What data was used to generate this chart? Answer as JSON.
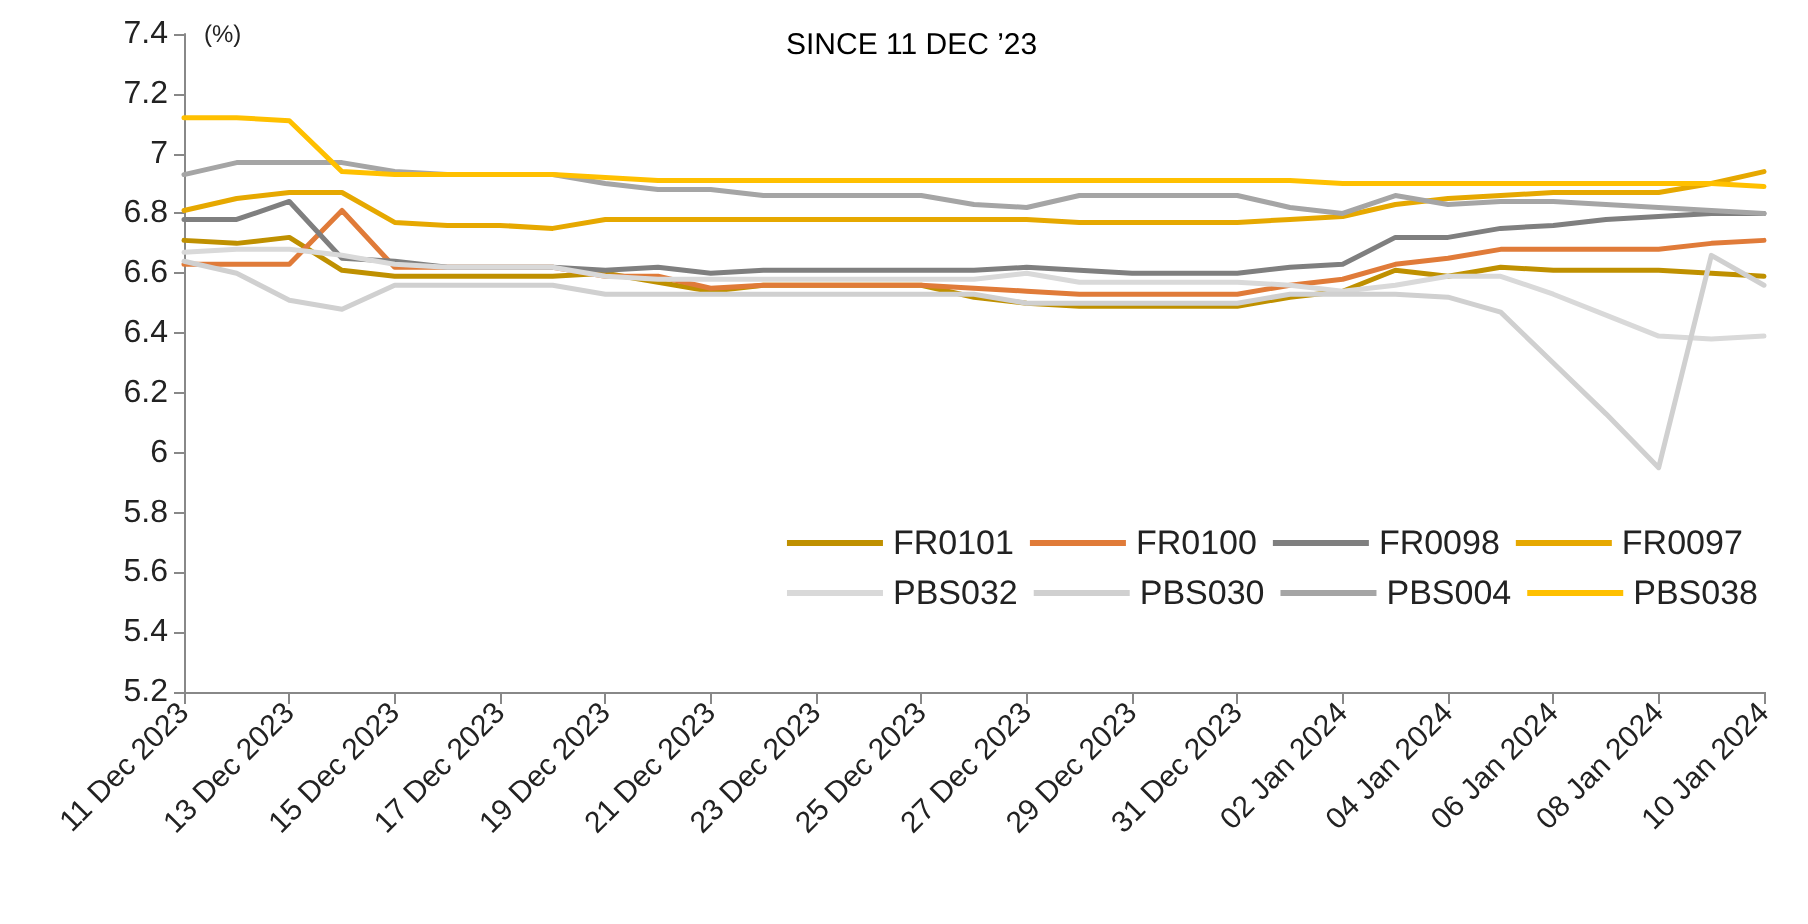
{
  "chart_data": {
    "type": "line",
    "title": "SINCE 11 DEC ’23",
    "ylabel": "(%)",
    "categories": [
      "11 Dec 2023",
      null,
      "13 Dec 2023",
      null,
      "15 Dec 2023",
      null,
      "17 Dec 2023",
      null,
      "19 Dec 2023",
      null,
      "21 Dec 2023",
      null,
      "23 Dec 2023",
      null,
      "25 Dec 2023",
      null,
      "27 Dec 2023",
      null,
      "29 Dec 2023",
      null,
      "31 Dec 2023",
      null,
      "02 Jan 2024",
      null,
      "04 Jan 2024",
      null,
      "06 Jan 2024",
      null,
      "08 Jan 2024",
      null,
      "10 Jan 2024"
    ],
    "series": [
      {
        "name": "FR0101",
        "color": "#bf9000",
        "values": [
          6.71,
          6.7,
          6.72,
          6.61,
          6.59,
          6.59,
          6.59,
          6.59,
          6.6,
          6.57,
          6.54,
          6.56,
          6.56,
          6.56,
          6.56,
          6.52,
          6.5,
          6.49,
          6.49,
          6.49,
          6.49,
          6.52,
          6.54,
          6.61,
          6.59,
          6.62,
          6.61,
          6.61,
          6.61,
          6.6,
          6.59
        ]
      },
      {
        "name": "FR0100",
        "color": "#e07b39",
        "values": [
          6.63,
          6.63,
          6.63,
          6.81,
          6.62,
          6.62,
          6.62,
          6.62,
          6.59,
          6.59,
          6.55,
          6.56,
          6.56,
          6.56,
          6.56,
          6.55,
          6.54,
          6.53,
          6.53,
          6.53,
          6.53,
          6.56,
          6.58,
          6.63,
          6.65,
          6.68,
          6.68,
          6.68,
          6.68,
          6.7,
          6.71
        ]
      },
      {
        "name": "FR0098",
        "color": "#7f7f7f",
        "values": [
          6.78,
          6.78,
          6.84,
          6.65,
          6.64,
          6.62,
          6.62,
          6.62,
          6.61,
          6.62,
          6.6,
          6.61,
          6.61,
          6.61,
          6.61,
          6.61,
          6.62,
          6.61,
          6.6,
          6.6,
          6.6,
          6.62,
          6.63,
          6.72,
          6.72,
          6.75,
          6.76,
          6.78,
          6.79,
          6.8,
          6.8
        ]
      },
      {
        "name": "FR0097",
        "color": "#e6a800",
        "values": [
          6.81,
          6.85,
          6.87,
          6.87,
          6.77,
          6.76,
          6.76,
          6.75,
          6.78,
          6.78,
          6.78,
          6.78,
          6.78,
          6.78,
          6.78,
          6.78,
          6.78,
          6.77,
          6.77,
          6.77,
          6.77,
          6.78,
          6.79,
          6.83,
          6.85,
          6.86,
          6.87,
          6.87,
          6.87,
          6.9,
          6.94
        ]
      },
      {
        "name": "PBS032",
        "color": "#d9d9d9",
        "values": [
          6.67,
          6.68,
          6.68,
          6.66,
          6.63,
          6.62,
          6.62,
          6.62,
          6.59,
          6.58,
          6.58,
          6.58,
          6.58,
          6.58,
          6.58,
          6.58,
          6.6,
          6.57,
          6.57,
          6.57,
          6.57,
          6.56,
          6.54,
          6.56,
          6.59,
          6.59,
          6.53,
          6.46,
          6.39,
          6.38,
          6.39
        ]
      },
      {
        "name": "PBS030",
        "color": "#d0d0d0",
        "values": [
          6.64,
          6.6,
          6.51,
          6.48,
          6.56,
          6.56,
          6.56,
          6.56,
          6.53,
          6.53,
          6.53,
          6.53,
          6.53,
          6.53,
          6.53,
          6.53,
          6.5,
          6.5,
          6.5,
          6.5,
          6.5,
          6.53,
          6.53,
          6.53,
          6.52,
          6.47,
          6.3,
          6.13,
          5.95,
          6.66,
          6.56
        ]
      },
      {
        "name": "PBS004",
        "color": "#a5a5a5",
        "values": [
          6.93,
          6.97,
          6.97,
          6.97,
          6.94,
          6.93,
          6.93,
          6.93,
          6.9,
          6.88,
          6.88,
          6.86,
          6.86,
          6.86,
          6.86,
          6.83,
          6.82,
          6.86,
          6.86,
          6.86,
          6.86,
          6.82,
          6.8,
          6.86,
          6.83,
          6.84,
          6.84,
          6.83,
          6.82,
          6.81,
          6.8
        ]
      },
      {
        "name": "PBS038",
        "color": "#ffc000",
        "values": [
          7.12,
          7.12,
          7.11,
          6.94,
          6.93,
          6.93,
          6.93,
          6.93,
          6.92,
          6.91,
          6.91,
          6.91,
          6.91,
          6.91,
          6.91,
          6.91,
          6.91,
          6.91,
          6.91,
          6.91,
          6.91,
          6.91,
          6.9,
          6.9,
          6.9,
          6.9,
          6.9,
          6.9,
          6.9,
          6.9,
          6.89
        ]
      }
    ],
    "ylim": [
      5.2,
      7.4
    ],
    "yticks": [
      5.2,
      5.4,
      5.6,
      5.8,
      6,
      6.2,
      6.4,
      6.6,
      6.8,
      7,
      7.2,
      7.4
    ],
    "grid": false,
    "legend": "bottom right",
    "marker": "none",
    "line_style": "solid"
  }
}
